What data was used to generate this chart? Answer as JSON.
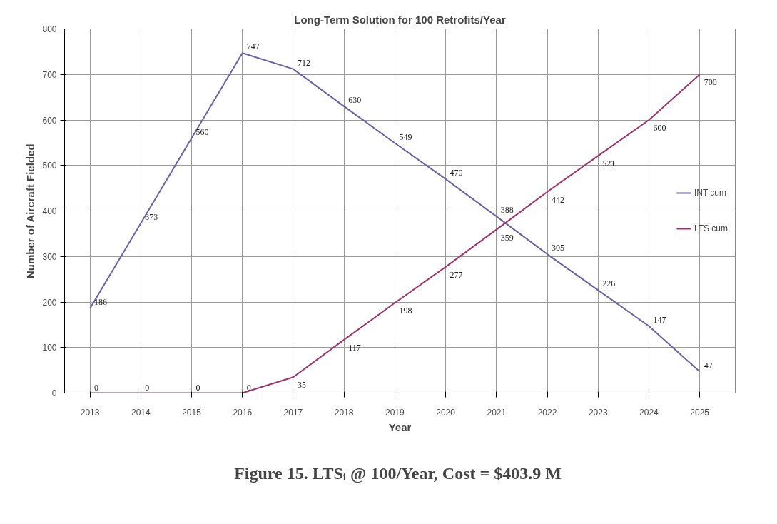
{
  "chart_data": {
    "type": "line",
    "title": "Long-Term Solution for 100 Retrofits/Year",
    "xlabel": "Year",
    "ylabel": "Number of Aircraft Fielded",
    "categories": [
      "2013",
      "2014",
      "2015",
      "2016",
      "2017",
      "2018",
      "2019",
      "2020",
      "2021",
      "2022",
      "2023",
      "2024",
      "2025"
    ],
    "series": [
      {
        "name": "INT cum",
        "color": "#6a5fa8",
        "values": [
          186,
          373,
          560,
          747,
          712,
          630,
          549,
          470,
          388,
          305,
          226,
          147,
          47
        ]
      },
      {
        "name": "LTS cum",
        "color": "#a0336b",
        "values": [
          0,
          0,
          0,
          0,
          35,
          117,
          198,
          277,
          359,
          442,
          521,
          600,
          700
        ]
      }
    ],
    "ylim": [
      0,
      800
    ],
    "yticks": [
      0,
      100,
      200,
      300,
      400,
      500,
      600,
      700,
      800
    ],
    "grid": true,
    "legend": "right",
    "data_labels": true,
    "annotations": [
      "Figure 15.  LTSᵢ @ 100/Year, Cost = $403.9 M"
    ]
  }
}
